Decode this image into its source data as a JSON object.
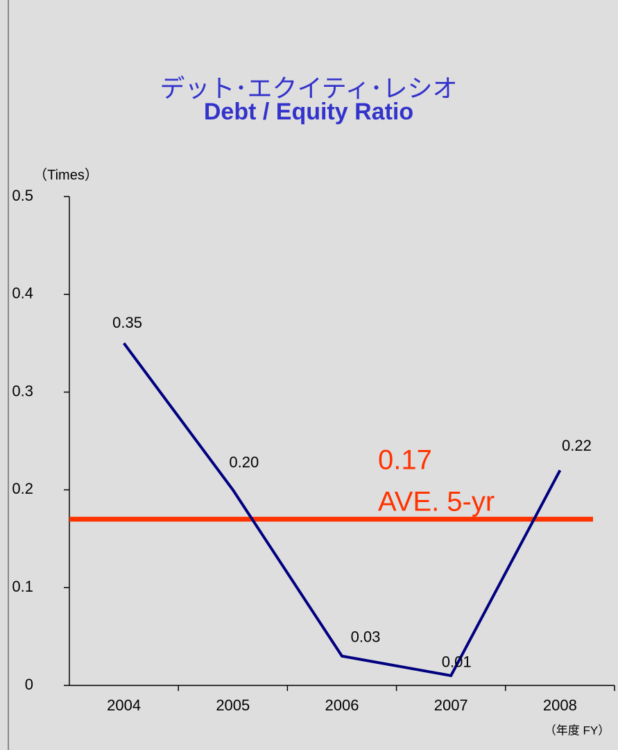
{
  "chart_data": {
    "type": "line",
    "title": "デット･エクイティ･レシオ",
    "subtitle": "Debt / Equity Ratio",
    "y_axis_label": "（Times）",
    "x_axis_label": "（年度 FY）",
    "categories": [
      "2004",
      "2005",
      "2006",
      "2007",
      "2008"
    ],
    "series": [
      {
        "name": "Debt / Equity Ratio",
        "color": "#000080",
        "values": [
          0.35,
          0.2,
          0.03,
          0.01,
          0.22
        ],
        "value_labels": [
          "0.35",
          "0.20",
          "0.03",
          "0.01",
          "0.22"
        ]
      }
    ],
    "average": {
      "value": 0.17,
      "label": "0.17",
      "text": "AVE. 5-yr",
      "color": "#ff3300"
    },
    "ylim": [
      0,
      0.5
    ],
    "yticks": [
      0,
      0.1,
      0.2,
      0.3,
      0.4,
      0.5
    ]
  }
}
